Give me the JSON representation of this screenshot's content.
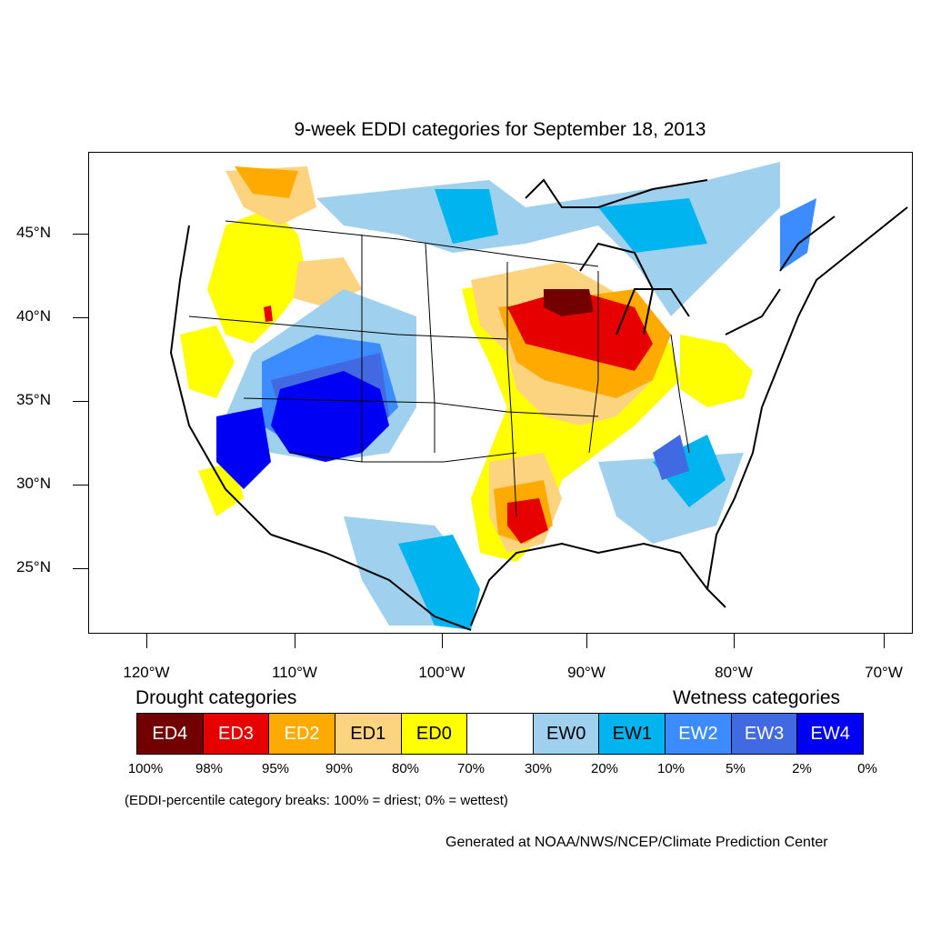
{
  "title": "9-week EDDI categories for September 18, 2013",
  "lat_labels": [
    "45°N",
    "40°N",
    "35°N",
    "30°N",
    "25°N"
  ],
  "lon_labels": [
    "120°W",
    "110°W",
    "100°W",
    "90°W",
    "80°W",
    "70°W"
  ],
  "drought_heading": "Drought categories",
  "wetness_heading": "Wetness categories",
  "legend": [
    {
      "label": "ED4",
      "color": "#730000",
      "text_color": "#ffffff"
    },
    {
      "label": "ED3",
      "color": "#e60000",
      "text_color": "#ffffff"
    },
    {
      "label": "ED2",
      "color": "#ffaa00",
      "text_color": "#ffffff"
    },
    {
      "label": "ED1",
      "color": "#fcd37f",
      "text_color": "#000000"
    },
    {
      "label": "ED0",
      "color": "#ffff00",
      "text_color": "#000000"
    },
    {
      "label": "",
      "color": "#ffffff",
      "text_color": "#000000"
    },
    {
      "label": "EW0",
      "color": "#9fd0ee",
      "text_color": "#000000"
    },
    {
      "label": "EW1",
      "color": "#00b4f0",
      "text_color": "#000000"
    },
    {
      "label": "EW2",
      "color": "#3c8cff",
      "text_color": "#ffffff"
    },
    {
      "label": "EW3",
      "color": "#4169e1",
      "text_color": "#ffffff"
    },
    {
      "label": "EW4",
      "color": "#0000f5",
      "text_color": "#ffffff"
    }
  ],
  "percentiles": [
    "100%",
    "98%",
    "95%",
    "90%",
    "80%",
    "70%",
    "30%",
    "20%",
    "10%",
    "5%",
    "2%",
    "0%"
  ],
  "note": "(EDDI-percentile category breaks: 100% = driest; 0% = wettest)",
  "credit": "Generated at NOAA/NWS/NCEP/Climate Prediction Center"
}
